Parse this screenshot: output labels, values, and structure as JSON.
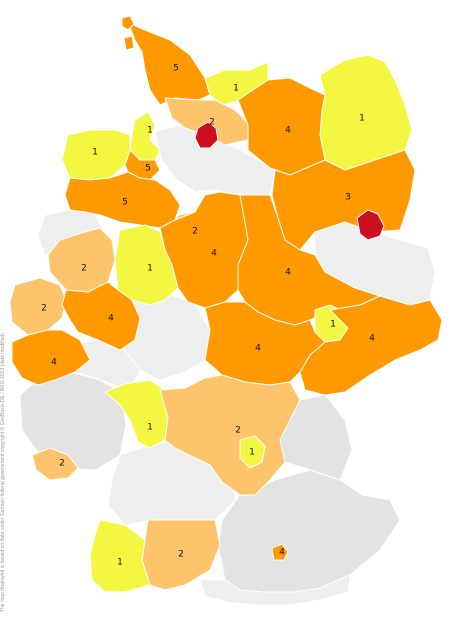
{
  "attribution": "The map displayed is based on data under German federal government copyright © GeoBasis-DE / BKG 2013 (data modified).",
  "colors": {
    "none": "#eeeeee",
    "none_dark": "#e3e3e3",
    "1": "#f4f741",
    "2": "#fdc46b",
    "3": "#ff9900",
    "4": "#ff9900",
    "5": "#ff9900",
    "high": "#cc0f1e"
  },
  "regions": [
    {
      "id": "r-sh",
      "value": "5",
      "label": "5"
    },
    {
      "id": "r-mv-w",
      "value": "1",
      "label": "1"
    },
    {
      "id": "r-mv-e",
      "value": "1",
      "label": "1"
    },
    {
      "id": "r-hh",
      "value": "2",
      "label": "2"
    },
    {
      "id": "r-hb",
      "value": "high",
      "label": ""
    },
    {
      "id": "r-brb-n",
      "value": "4",
      "label": "4"
    },
    {
      "id": "r-fri",
      "value": "1",
      "label": "1"
    },
    {
      "id": "r-ems",
      "value": "1",
      "label": "1"
    },
    {
      "id": "r-ol",
      "value": "5",
      "label": "5"
    },
    {
      "id": "r-nds-w",
      "value": "5",
      "label": "5"
    },
    {
      "id": "r-brb-e",
      "value": "3",
      "label": "3"
    },
    {
      "id": "r-berlin",
      "value": "high",
      "label": ""
    },
    {
      "id": "r-h",
      "value": "2",
      "label": "2"
    },
    {
      "id": "r-nds-s",
      "value": "4",
      "label": "4"
    },
    {
      "id": "r-st",
      "value": "4",
      "label": "4"
    },
    {
      "id": "r-nrw-n",
      "value": "2",
      "label": "2"
    },
    {
      "id": "r-owl",
      "value": "1",
      "label": "1"
    },
    {
      "id": "r-nrw-w",
      "value": "2",
      "label": "2"
    },
    {
      "id": "r-nrw-c",
      "value": "4",
      "label": "4"
    },
    {
      "id": "r-nrw-s",
      "value": "4",
      "label": "4"
    },
    {
      "id": "r-leipzig",
      "value": "1",
      "label": "1"
    },
    {
      "id": "r-sn",
      "value": "4",
      "label": "4"
    },
    {
      "id": "r-th",
      "value": "4",
      "label": "4"
    },
    {
      "id": "r-he",
      "value": "1",
      "label": "1"
    },
    {
      "id": "r-franken",
      "value": "2",
      "label": "2"
    },
    {
      "id": "r-nbg",
      "value": "1",
      "label": "1"
    },
    {
      "id": "r-saar",
      "value": "2",
      "label": "2"
    },
    {
      "id": "r-bw-s",
      "value": "2",
      "label": "2"
    },
    {
      "id": "r-bw-w",
      "value": "1",
      "label": "1"
    },
    {
      "id": "r-muc",
      "value": "4",
      "label": "4"
    }
  ]
}
